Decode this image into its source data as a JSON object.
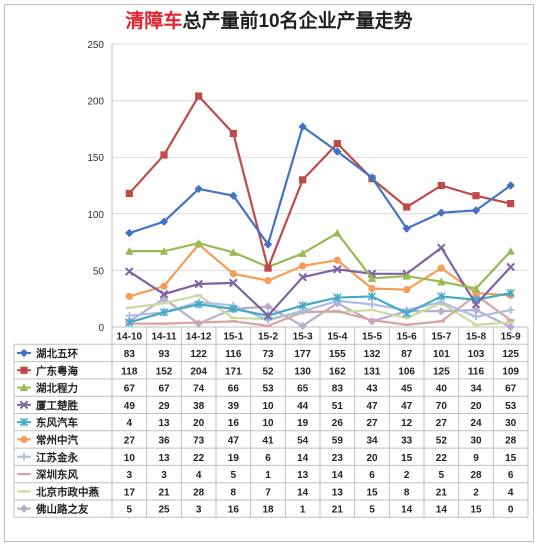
{
  "chart_data": {
    "type": "line",
    "title_brand": "清障车",
    "title_rest": "总产量前10名企业产量走势",
    "xlabel": "",
    "ylabel": "",
    "ylim": [
      0,
      250
    ],
    "yticks": [
      0,
      50,
      100,
      150,
      200,
      250
    ],
    "grid": true,
    "legend": "data-table-below",
    "categories": [
      "14-10",
      "14-11",
      "14-12",
      "15-1",
      "15-2",
      "15-3",
      "15-4",
      "15-5",
      "15-6",
      "15-7",
      "15-8",
      "15-9"
    ],
    "series": [
      {
        "name": "湖北五环",
        "color": "#4472c4",
        "marker": "diamond",
        "values": [
          83,
          93,
          122,
          116,
          73,
          177,
          155,
          132,
          87,
          101,
          103,
          125
        ]
      },
      {
        "name": "广东粤海",
        "color": "#be4b48",
        "marker": "square",
        "values": [
          118,
          152,
          204,
          171,
          52,
          130,
          162,
          131,
          106,
          125,
          116,
          109
        ]
      },
      {
        "name": "湖北程力",
        "color": "#98b954",
        "marker": "triangle",
        "values": [
          67,
          67,
          74,
          66,
          53,
          65,
          83,
          43,
          45,
          40,
          34,
          67
        ]
      },
      {
        "name": "厦工楚胜",
        "color": "#7e62a1",
        "marker": "x",
        "values": [
          49,
          29,
          38,
          39,
          10,
          44,
          51,
          47,
          47,
          70,
          20,
          53
        ]
      },
      {
        "name": "东风汽车",
        "color": "#46aac5",
        "marker": "star",
        "values": [
          4,
          13,
          20,
          16,
          10,
          19,
          26,
          27,
          12,
          27,
          24,
          30
        ]
      },
      {
        "name": "常州中汽",
        "color": "#f59d56",
        "marker": "circle",
        "values": [
          27,
          36,
          73,
          47,
          41,
          54,
          59,
          34,
          33,
          52,
          30,
          28
        ]
      },
      {
        "name": "江苏金永",
        "color": "#a9bfe4",
        "marker": "plus",
        "values": [
          10,
          13,
          22,
          19,
          6,
          14,
          23,
          20,
          15,
          22,
          9,
          15
        ]
      },
      {
        "name": "深圳东风",
        "color": "#d9a3a2",
        "marker": "dash",
        "values": [
          3,
          3,
          4,
          5,
          1,
          13,
          14,
          6,
          2,
          5,
          28,
          6
        ]
      },
      {
        "name": "北京市政中燕",
        "color": "#c9dba1",
        "marker": "dash",
        "values": [
          17,
          21,
          28,
          8,
          7,
          14,
          13,
          15,
          8,
          21,
          2,
          4
        ]
      },
      {
        "name": "佛山路之友",
        "color": "#b9aed0",
        "marker": "diamond",
        "values": [
          5,
          25,
          3,
          16,
          18,
          1,
          21,
          5,
          14,
          14,
          15,
          0
        ]
      }
    ]
  }
}
